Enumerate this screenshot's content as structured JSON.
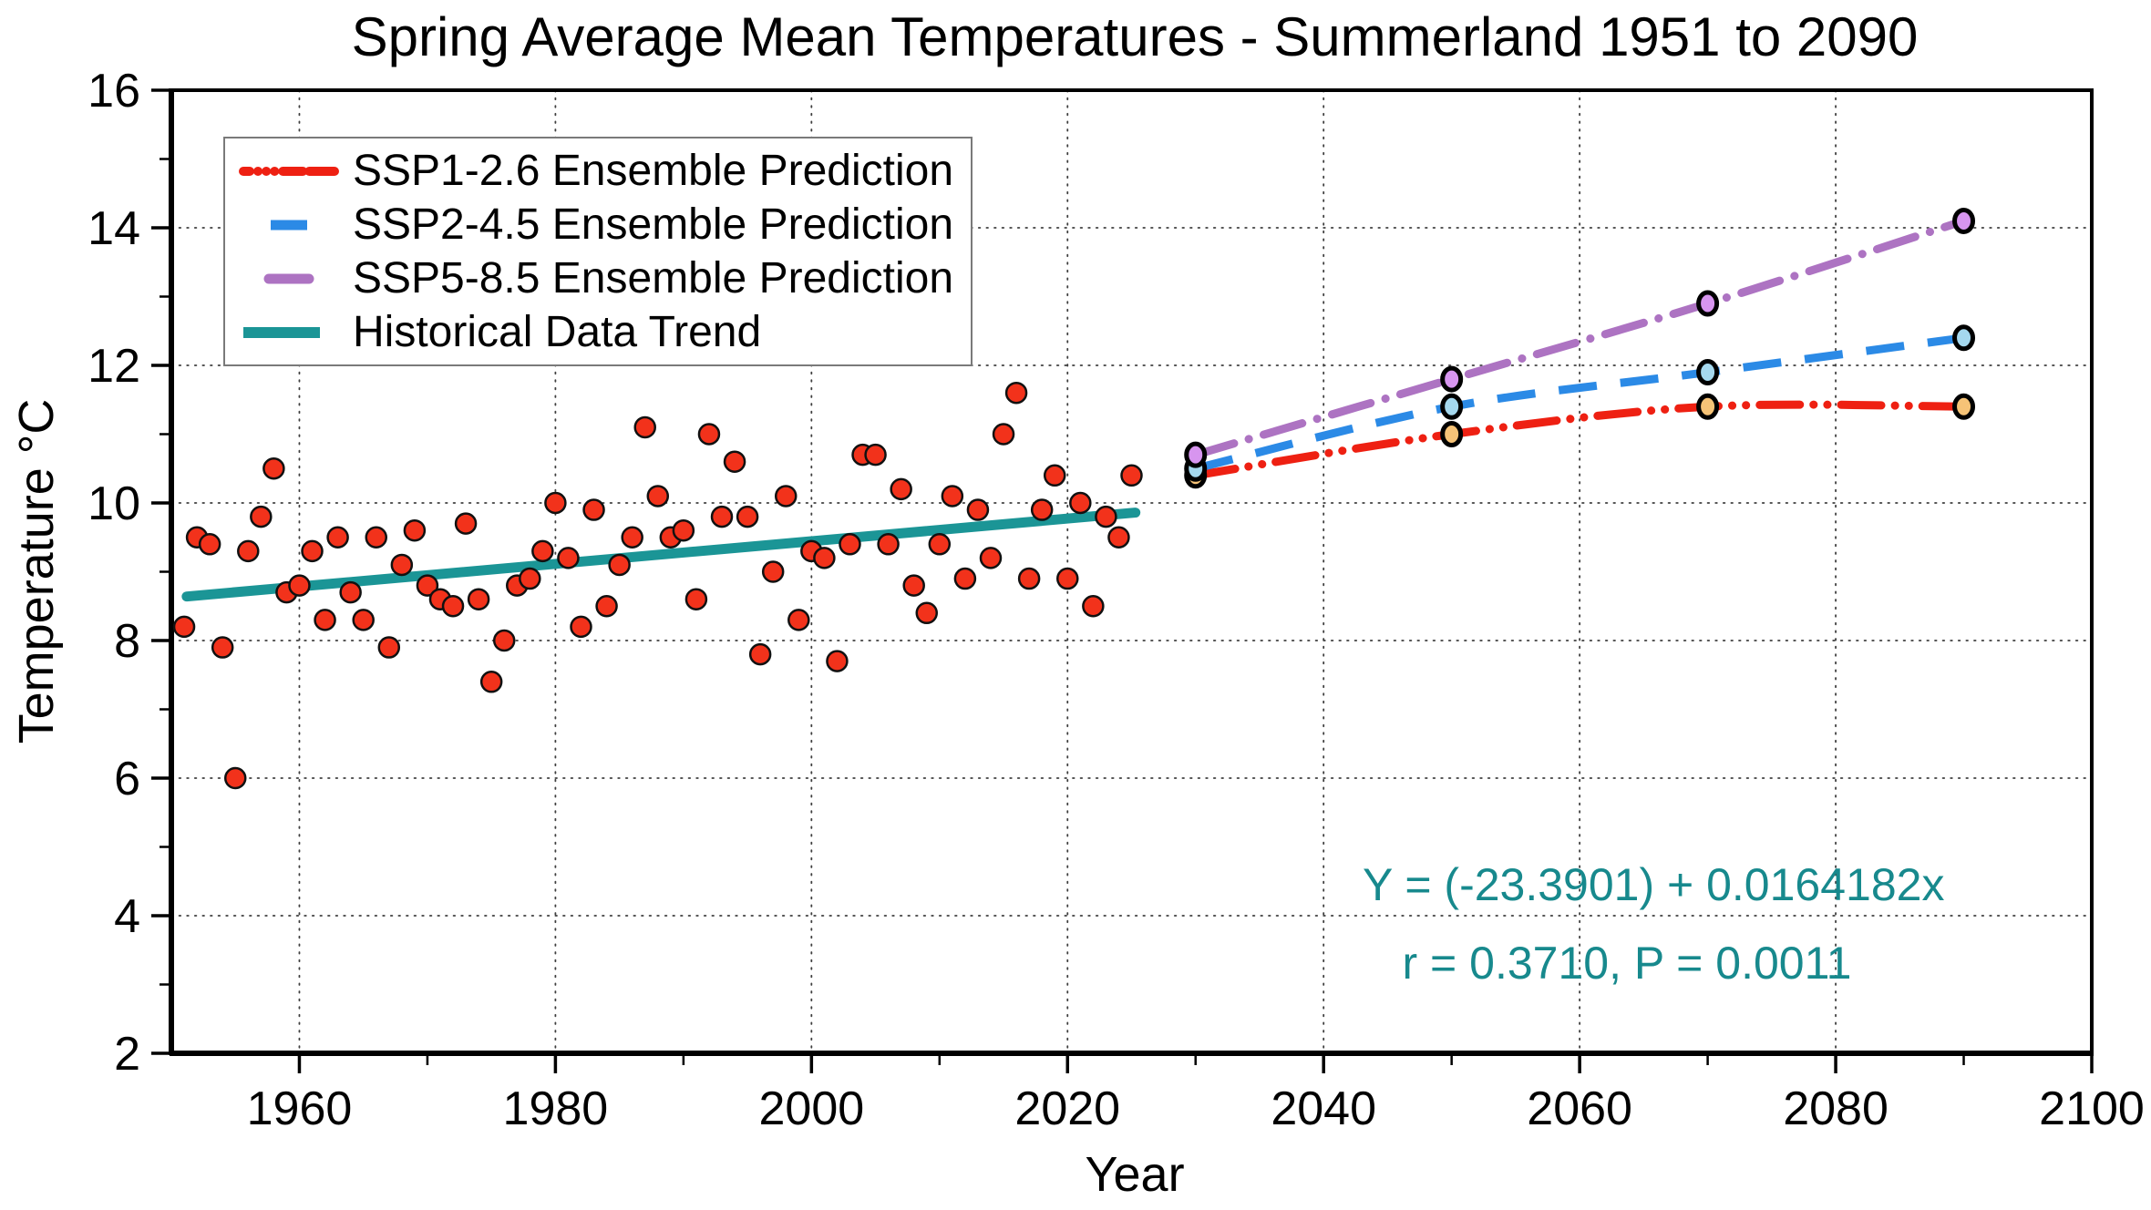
{
  "chart_data": {
    "type": "scatter",
    "title": "Spring Average Mean Temperatures - Summerland 1951 to 2090",
    "xlabel": "Year",
    "ylabel": "Temperature °C",
    "xlim": [
      1950,
      2100
    ],
    "ylim": [
      2,
      16
    ],
    "x_major_ticks": [
      1960,
      1980,
      2000,
      2020,
      2040,
      2060,
      2080,
      2100
    ],
    "x_minor_ticks": [
      1970,
      1990,
      2010,
      2030,
      2050,
      2070,
      2090
    ],
    "y_major_ticks": [
      2,
      4,
      6,
      8,
      10,
      12,
      14,
      16
    ],
    "y_minor_ticks": [
      3,
      5,
      7,
      9,
      11,
      13,
      15
    ],
    "grid": {
      "style": "dotted",
      "on_major_ticks": true,
      "color": "#3f3f3f"
    },
    "legend": {
      "position": "top-left",
      "entries": [
        {
          "label": "SSP1-2.6 Ensemble Prediction",
          "color": "#ee2012",
          "pattern": "dash-dot-dot"
        },
        {
          "label": "SSP2-4.5 Ensemble Prediction",
          "color": "#2b8ae6",
          "pattern": "dashed"
        },
        {
          "label": "SSP5-8.5 Ensemble Prediction",
          "color": "#ad73c2",
          "pattern": "dash-dot"
        },
        {
          "label": "Historical Data Trend",
          "color": "#1b9596",
          "pattern": "solid"
        }
      ]
    },
    "series": [
      {
        "name": "Historical observations",
        "type": "scatter",
        "marker": "circle",
        "color": "#f2321b",
        "edge_color": "#111111",
        "points": [
          [
            1951,
            8.2
          ],
          [
            1952,
            9.5
          ],
          [
            1953,
            9.4
          ],
          [
            1954,
            7.9
          ],
          [
            1955,
            6.0
          ],
          [
            1956,
            9.3
          ],
          [
            1957,
            9.8
          ],
          [
            1958,
            10.5
          ],
          [
            1959,
            8.7
          ],
          [
            1960,
            8.8
          ],
          [
            1961,
            9.3
          ],
          [
            1962,
            8.3
          ],
          [
            1963,
            9.5
          ],
          [
            1964,
            8.7
          ],
          [
            1965,
            8.3
          ],
          [
            1966,
            9.5
          ],
          [
            1967,
            7.9
          ],
          [
            1968,
            9.1
          ],
          [
            1969,
            9.6
          ],
          [
            1970,
            8.8
          ],
          [
            1971,
            8.6
          ],
          [
            1972,
            8.5
          ],
          [
            1973,
            9.7
          ],
          [
            1974,
            8.6
          ],
          [
            1975,
            7.4
          ],
          [
            1976,
            8.0
          ],
          [
            1977,
            8.8
          ],
          [
            1978,
            8.9
          ],
          [
            1979,
            9.3
          ],
          [
            1980,
            10.0
          ],
          [
            1981,
            9.2
          ],
          [
            1982,
            8.2
          ],
          [
            1983,
            9.9
          ],
          [
            1984,
            8.5
          ],
          [
            1985,
            9.1
          ],
          [
            1986,
            9.5
          ],
          [
            1987,
            11.1
          ],
          [
            1988,
            10.1
          ],
          [
            1989,
            9.5
          ],
          [
            1990,
            9.6
          ],
          [
            1991,
            8.6
          ],
          [
            1992,
            11.0
          ],
          [
            1993,
            9.8
          ],
          [
            1994,
            10.6
          ],
          [
            1995,
            9.8
          ],
          [
            1996,
            7.8
          ],
          [
            1997,
            9.0
          ],
          [
            1998,
            10.1
          ],
          [
            1999,
            8.3
          ],
          [
            2000,
            9.3
          ],
          [
            2001,
            9.2
          ],
          [
            2002,
            7.7
          ],
          [
            2003,
            9.4
          ],
          [
            2004,
            10.7
          ],
          [
            2005,
            10.7
          ],
          [
            2006,
            9.4
          ],
          [
            2007,
            10.2
          ],
          [
            2008,
            8.8
          ],
          [
            2009,
            8.4
          ],
          [
            2010,
            9.4
          ],
          [
            2011,
            10.1
          ],
          [
            2012,
            8.9
          ],
          [
            2013,
            9.9
          ],
          [
            2014,
            9.2
          ],
          [
            2015,
            11.0
          ],
          [
            2016,
            11.6
          ],
          [
            2017,
            8.9
          ],
          [
            2018,
            9.9
          ],
          [
            2019,
            10.4
          ],
          [
            2020,
            8.9
          ],
          [
            2021,
            10.0
          ],
          [
            2022,
            8.5
          ],
          [
            2023,
            9.8
          ],
          [
            2024,
            9.5
          ],
          [
            2025,
            10.4
          ]
        ]
      },
      {
        "name": "Historical Data Trend",
        "type": "line",
        "style": "solid",
        "color": "#1b9596",
        "width": 11,
        "x": [
          1951.2,
          2025.3
        ],
        "values": [
          8.64,
          9.86
        ]
      },
      {
        "name": "SSP1-2.6 Ensemble Prediction",
        "type": "line",
        "style": "dash-dot-dot",
        "color": "#ee2012",
        "marker_fill": "#f6c377",
        "x": [
          2030,
          2050,
          2070,
          2090
        ],
        "values": [
          10.4,
          11.0,
          11.4,
          11.4
        ]
      },
      {
        "name": "SSP2-4.5 Ensemble Prediction",
        "type": "line",
        "style": "dashed",
        "color": "#2b8ae6",
        "marker_fill": "#a5d8ee",
        "x": [
          2030,
          2050,
          2070,
          2090
        ],
        "values": [
          10.5,
          11.4,
          11.9,
          12.4
        ]
      },
      {
        "name": "SSP5-8.5 Ensemble Prediction",
        "type": "line",
        "style": "dash-dot",
        "color": "#ad73c2",
        "marker_fill": "#d795ef",
        "x": [
          2030,
          2050,
          2070,
          2090
        ],
        "values": [
          10.7,
          11.8,
          12.9,
          14.1
        ]
      }
    ],
    "annotation": {
      "line1": "Y = (-23.3901) + 0.0164182x",
      "line2": "r = 0.3710, P = 0.0011",
      "color": "#17898d"
    },
    "regression": {
      "intercept": -23.3901,
      "slope": 0.0164182,
      "r": 0.371,
      "p": 0.0011
    }
  }
}
